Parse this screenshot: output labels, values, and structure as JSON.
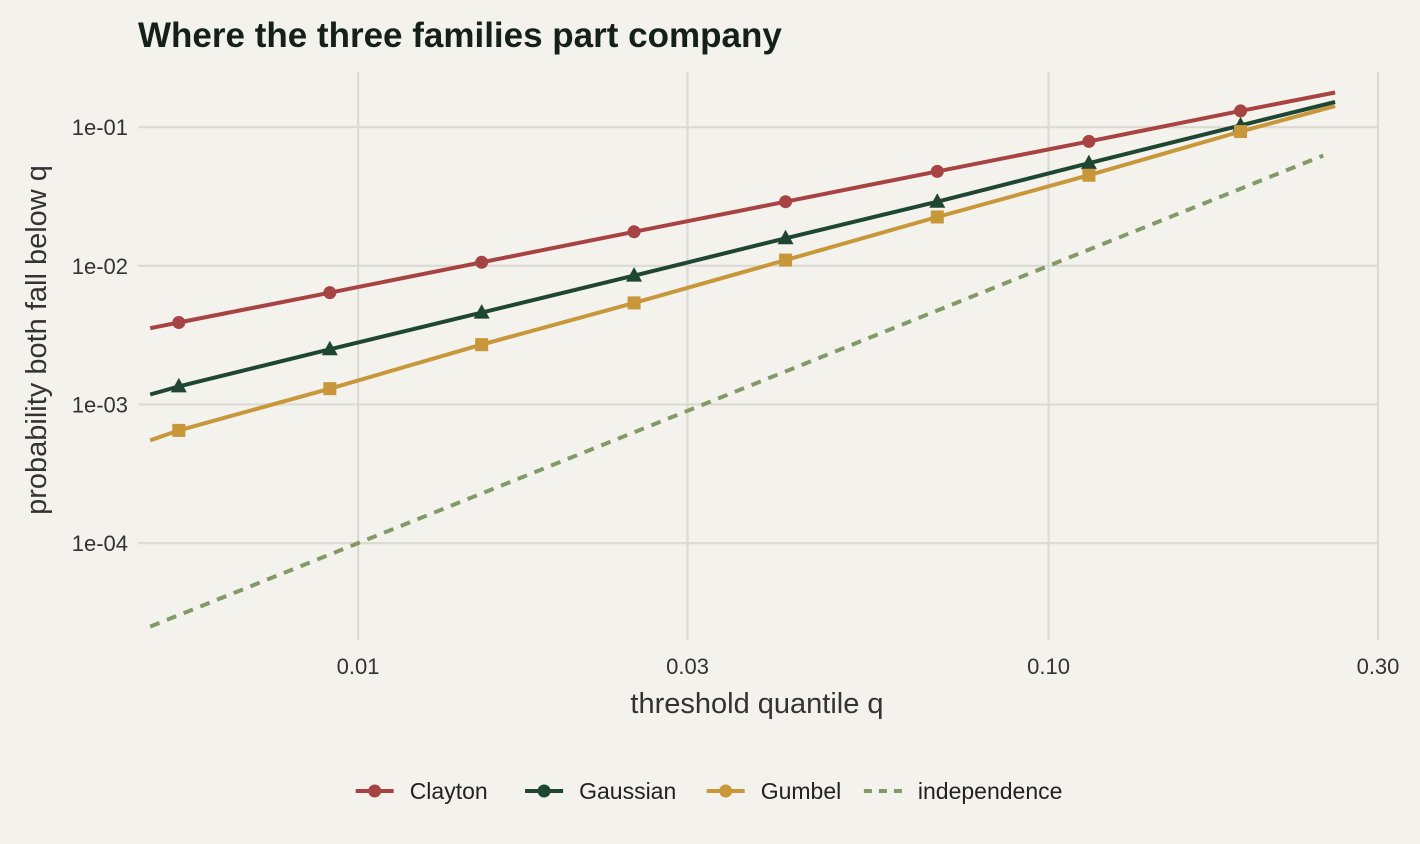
{
  "chart_data": {
    "type": "line",
    "title": "Where the three families part company",
    "xlabel": "threshold quantile q",
    "ylabel": "probability both fall below q",
    "x_scale": "log",
    "y_scale": "log",
    "xlim": [
      0.0048,
      0.3
    ],
    "ylim": [
      2e-05,
      0.25
    ],
    "x_ticks": [
      {
        "value": 0.01,
        "label": "0.01"
      },
      {
        "value": 0.03,
        "label": "0.03"
      },
      {
        "value": 0.1,
        "label": "0.10"
      },
      {
        "value": 0.3,
        "label": "0.30"
      }
    ],
    "y_ticks": [
      {
        "value": 0.0001,
        "label": "1e-04"
      },
      {
        "value": 0.001,
        "label": "1e-03"
      },
      {
        "value": 0.01,
        "label": "1e-02"
      },
      {
        "value": 0.1,
        "label": "1e-01"
      }
    ],
    "grid": true,
    "legend_position": "bottom",
    "series": [
      {
        "name": "Clayton",
        "color": "#a84343",
        "marker": "circle",
        "dash": false,
        "x": [
          0.005,
          0.0055,
          0.0091,
          0.0151,
          0.0251,
          0.0416,
          0.069,
          0.1144,
          0.1897,
          0.26
        ],
        "y": [
          0.00355,
          0.0039,
          0.0064,
          0.0106,
          0.0176,
          0.029,
          0.048,
          0.079,
          0.131,
          0.178
        ],
        "marker_idx": [
          1,
          2,
          3,
          4,
          5,
          6,
          7,
          8
        ]
      },
      {
        "name": "Gaussian",
        "color": "#1f4533",
        "marker": "triangle",
        "dash": false,
        "x": [
          0.005,
          0.0055,
          0.0091,
          0.0151,
          0.0251,
          0.0416,
          0.069,
          0.1144,
          0.1897,
          0.26
        ],
        "y": [
          0.00118,
          0.00135,
          0.0025,
          0.0046,
          0.0085,
          0.0158,
          0.029,
          0.055,
          0.103,
          0.152
        ],
        "marker_idx": [
          1,
          2,
          3,
          4,
          5,
          6,
          7,
          8
        ]
      },
      {
        "name": "Gumbel",
        "color": "#c7973a",
        "marker": "square",
        "dash": false,
        "x": [
          0.005,
          0.0055,
          0.0091,
          0.0151,
          0.0251,
          0.0416,
          0.069,
          0.1144,
          0.1897,
          0.26
        ],
        "y": [
          0.00055,
          0.00065,
          0.0013,
          0.0027,
          0.0054,
          0.011,
          0.0225,
          0.045,
          0.093,
          0.142
        ],
        "marker_idx": [
          1,
          2,
          3,
          4,
          5,
          6,
          7,
          8
        ]
      },
      {
        "name": "independence",
        "color": "#829a68",
        "marker": "none",
        "dash": true,
        "x": [
          0.005,
          0.25
        ],
        "y": [
          2.5e-05,
          0.0625
        ],
        "marker_idx": []
      }
    ]
  }
}
